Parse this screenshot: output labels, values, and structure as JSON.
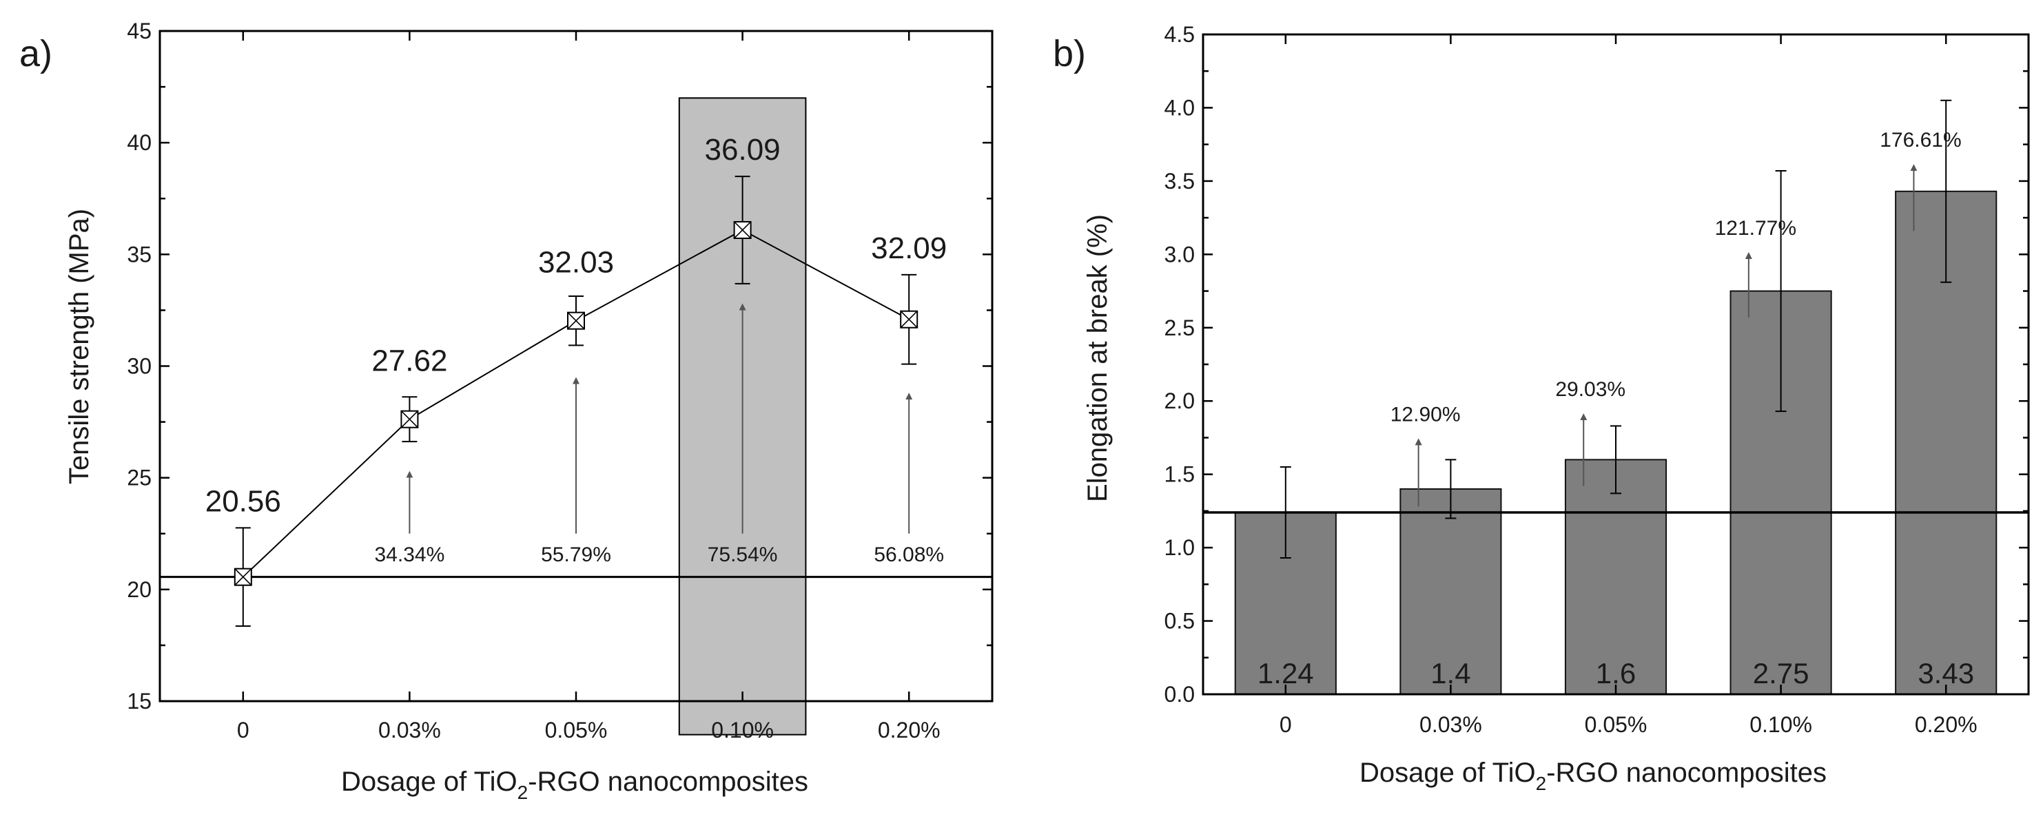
{
  "chart_data": [
    {
      "type": "line",
      "panel_label": "a)",
      "title": "",
      "xlabel": {
        "pre": "Dosage of TiO",
        "sub": "2",
        "post": "-RGO nanocomposites"
      },
      "ylabel": "Tensile strength (MPa)",
      "ylim": [
        15,
        45
      ],
      "yticks": [
        "15",
        "20",
        "25",
        "30",
        "35",
        "40",
        "45"
      ],
      "categories": [
        "0",
        "0.03%",
        "0.05%",
        "0.10%",
        "0.20%"
      ],
      "values": [
        20.56,
        27.62,
        32.03,
        36.09,
        32.09
      ],
      "errors": [
        2.2,
        1.0,
        1.1,
        2.4,
        2.0
      ],
      "value_labels": [
        "20.56",
        "27.62",
        "32.03",
        "36.09",
        "32.09"
      ],
      "baseline": 20.56,
      "highlight_category": "0.10%",
      "highlight_range": [
        13.5,
        42.0
      ],
      "increase_labels": [
        "",
        "34.34%",
        "55.79%",
        "75.54%",
        "56.08%"
      ],
      "arrow_tops": [
        null,
        25.4,
        29.6,
        32.9,
        28.9
      ],
      "arrow_bottom": 22.5,
      "colors": {
        "highlight": "#c0c0c0",
        "line": "#000000",
        "marker_fill": "#ffffff"
      }
    },
    {
      "type": "bar",
      "panel_label": "b)",
      "title": "",
      "xlabel": {
        "pre": "Dosage of TiO",
        "sub": "2",
        "post": "-RGO nanocomposites"
      },
      "ylabel": "Elongation at break (%)",
      "ylim": [
        0.0,
        4.5
      ],
      "yticks": [
        "0.0",
        "0.5",
        "1.0",
        "1.5",
        "2.0",
        "2.5",
        "3.0",
        "3.5",
        "4.0",
        "4.5"
      ],
      "categories": [
        "0",
        "0.03%",
        "0.05%",
        "0.10%",
        "0.20%"
      ],
      "values": [
        1.24,
        1.4,
        1.6,
        2.75,
        3.43
      ],
      "errors": [
        0.31,
        0.2,
        0.23,
        0.82,
        0.62
      ],
      "value_labels": [
        "1.24",
        "1.4",
        "1.6",
        "2.75",
        "3.43"
      ],
      "baseline": 1.24,
      "increase_labels": [
        "",
        "12.90%",
        "29.03%",
        "121.77%",
        "176.61%"
      ],
      "arrow_spans": [
        null,
        [
          1.28,
          1.76
        ],
        [
          1.42,
          1.93
        ],
        [
          2.57,
          3.03
        ],
        [
          3.16,
          3.63
        ]
      ],
      "colors": {
        "bar": "#7f7f7f",
        "bar_edge": "#111111",
        "line": "#000000"
      }
    }
  ]
}
